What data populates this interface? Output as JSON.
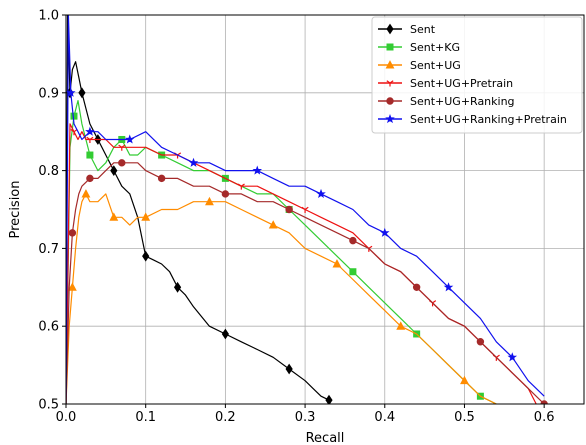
{
  "chart_data": {
    "type": "line",
    "xlabel": "Recall",
    "ylabel": "Precision",
    "xlim": [
      0.0,
      0.65
    ],
    "ylim": [
      0.5,
      1.0
    ],
    "grid": true,
    "legend_placement": "top-right",
    "x_ticks": [
      0.0,
      0.1,
      0.2,
      0.3,
      0.4,
      0.5,
      0.6
    ],
    "x_tick_labels": [
      "0.0",
      "0.1",
      "0.2",
      "0.3",
      "0.4",
      "0.5",
      "0.6"
    ],
    "y_ticks": [
      0.5,
      0.6,
      0.7,
      0.8,
      0.9,
      1.0
    ],
    "y_tick_labels": [
      "0.5",
      "0.6",
      "0.7",
      "0.8",
      "0.9",
      "1.0"
    ],
    "series": [
      {
        "name": "Sent",
        "color": "#000000",
        "marker": "diamond",
        "x": [
          0.0,
          0.002,
          0.005,
          0.008,
          0.012,
          0.016,
          0.02,
          0.025,
          0.03,
          0.035,
          0.04,
          0.045,
          0.05,
          0.055,
          0.06,
          0.07,
          0.08,
          0.09,
          0.1,
          0.11,
          0.12,
          0.13,
          0.14,
          0.15,
          0.16,
          0.18,
          0.2,
          0.22,
          0.24,
          0.26,
          0.28,
          0.3,
          0.31,
          0.32,
          0.33
        ],
        "y": [
          0.5,
          1.0,
          0.9,
          0.93,
          0.94,
          0.92,
          0.9,
          0.88,
          0.86,
          0.85,
          0.84,
          0.83,
          0.82,
          0.81,
          0.8,
          0.78,
          0.77,
          0.74,
          0.69,
          0.685,
          0.68,
          0.67,
          0.65,
          0.64,
          0.625,
          0.6,
          0.59,
          0.58,
          0.57,
          0.56,
          0.545,
          0.53,
          0.52,
          0.51,
          0.505
        ]
      },
      {
        "name": "Sent+KG",
        "color": "#33cc33",
        "marker": "square",
        "x": [
          0.0,
          0.005,
          0.01,
          0.015,
          0.02,
          0.025,
          0.03,
          0.04,
          0.05,
          0.06,
          0.07,
          0.08,
          0.09,
          0.1,
          0.12,
          0.14,
          0.16,
          0.18,
          0.2,
          0.22,
          0.24,
          0.26,
          0.28,
          0.3,
          0.32,
          0.34,
          0.36,
          0.38,
          0.4,
          0.42,
          0.44,
          0.46,
          0.48,
          0.5,
          0.52,
          0.54
        ],
        "y": [
          0.5,
          0.83,
          0.87,
          0.89,
          0.86,
          0.84,
          0.82,
          0.8,
          0.81,
          0.83,
          0.84,
          0.82,
          0.82,
          0.83,
          0.82,
          0.81,
          0.8,
          0.8,
          0.79,
          0.78,
          0.77,
          0.77,
          0.75,
          0.73,
          0.71,
          0.69,
          0.67,
          0.65,
          0.63,
          0.61,
          0.59,
          0.57,
          0.55,
          0.53,
          0.51,
          0.5
        ]
      },
      {
        "name": "Sent+UG",
        "color": "#ff8c00",
        "marker": "triangle",
        "x": [
          0.0,
          0.004,
          0.008,
          0.012,
          0.016,
          0.02,
          0.025,
          0.03,
          0.04,
          0.05,
          0.06,
          0.07,
          0.08,
          0.09,
          0.1,
          0.12,
          0.14,
          0.16,
          0.18,
          0.2,
          0.22,
          0.24,
          0.26,
          0.28,
          0.3,
          0.32,
          0.34,
          0.36,
          0.38,
          0.4,
          0.42,
          0.44,
          0.46,
          0.48,
          0.5,
          0.52,
          0.54
        ],
        "y": [
          0.5,
          0.6,
          0.65,
          0.7,
          0.74,
          0.76,
          0.77,
          0.76,
          0.76,
          0.77,
          0.74,
          0.74,
          0.73,
          0.74,
          0.74,
          0.75,
          0.75,
          0.76,
          0.76,
          0.76,
          0.75,
          0.74,
          0.73,
          0.72,
          0.7,
          0.69,
          0.68,
          0.66,
          0.64,
          0.62,
          0.6,
          0.59,
          0.57,
          0.55,
          0.53,
          0.51,
          0.5
        ]
      },
      {
        "name": "Sent+UG+Pretrain",
        "color": "#ee1111",
        "marker": "tri_down",
        "x": [
          0.0,
          0.005,
          0.01,
          0.015,
          0.02,
          0.025,
          0.03,
          0.04,
          0.05,
          0.06,
          0.07,
          0.08,
          0.1,
          0.12,
          0.14,
          0.16,
          0.18,
          0.2,
          0.22,
          0.24,
          0.26,
          0.28,
          0.3,
          0.32,
          0.34,
          0.36,
          0.38,
          0.4,
          0.42,
          0.44,
          0.46,
          0.48,
          0.5,
          0.52,
          0.54,
          0.56,
          0.58,
          0.59
        ],
        "y": [
          0.5,
          0.86,
          0.85,
          0.84,
          0.85,
          0.84,
          0.84,
          0.84,
          0.84,
          0.83,
          0.83,
          0.83,
          0.83,
          0.82,
          0.82,
          0.81,
          0.8,
          0.79,
          0.78,
          0.78,
          0.77,
          0.76,
          0.75,
          0.74,
          0.73,
          0.72,
          0.7,
          0.68,
          0.67,
          0.65,
          0.63,
          0.61,
          0.6,
          0.58,
          0.56,
          0.54,
          0.52,
          0.5
        ]
      },
      {
        "name": "Sent+UG+Ranking",
        "color": "#a52a2a",
        "marker": "circle",
        "x": [
          0.0,
          0.004,
          0.008,
          0.012,
          0.016,
          0.02,
          0.03,
          0.04,
          0.05,
          0.06,
          0.07,
          0.08,
          0.09,
          0.1,
          0.12,
          0.14,
          0.16,
          0.18,
          0.2,
          0.22,
          0.24,
          0.26,
          0.28,
          0.3,
          0.32,
          0.34,
          0.36,
          0.38,
          0.4,
          0.42,
          0.44,
          0.46,
          0.48,
          0.5,
          0.52,
          0.54,
          0.56,
          0.58,
          0.6
        ],
        "y": [
          0.5,
          0.65,
          0.72,
          0.75,
          0.77,
          0.78,
          0.79,
          0.79,
          0.8,
          0.81,
          0.81,
          0.81,
          0.81,
          0.8,
          0.79,
          0.79,
          0.78,
          0.78,
          0.77,
          0.77,
          0.76,
          0.76,
          0.75,
          0.74,
          0.73,
          0.72,
          0.71,
          0.7,
          0.68,
          0.67,
          0.65,
          0.63,
          0.61,
          0.6,
          0.58,
          0.56,
          0.54,
          0.52,
          0.5
        ]
      },
      {
        "name": "Sent+UG+Ranking+Pretrain",
        "color": "#1111ee",
        "marker": "star",
        "x": [
          0.0,
          0.003,
          0.006,
          0.01,
          0.015,
          0.02,
          0.03,
          0.04,
          0.05,
          0.06,
          0.08,
          0.1,
          0.12,
          0.14,
          0.16,
          0.18,
          0.2,
          0.22,
          0.24,
          0.26,
          0.28,
          0.3,
          0.32,
          0.34,
          0.36,
          0.38,
          0.4,
          0.42,
          0.44,
          0.46,
          0.48,
          0.5,
          0.52,
          0.54,
          0.56,
          0.58,
          0.6
        ],
        "y": [
          0.5,
          1.0,
          0.9,
          0.86,
          0.85,
          0.84,
          0.85,
          0.85,
          0.84,
          0.84,
          0.84,
          0.85,
          0.83,
          0.82,
          0.81,
          0.81,
          0.8,
          0.8,
          0.8,
          0.79,
          0.78,
          0.78,
          0.77,
          0.76,
          0.75,
          0.73,
          0.72,
          0.7,
          0.69,
          0.67,
          0.65,
          0.63,
          0.61,
          0.58,
          0.56,
          0.53,
          0.51
        ]
      }
    ]
  }
}
